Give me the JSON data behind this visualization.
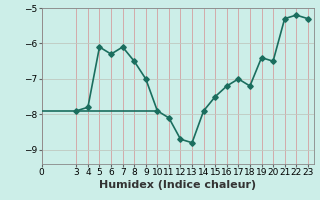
{
  "xlabel": "Humidex (Indice chaleur)",
  "ylabel": "",
  "background_color": "#cceee8",
  "line_color": "#1a6e5e",
  "hline_color": "#1a6e5e",
  "grid_color": "#b0d8d0",
  "x_values": [
    3,
    4,
    5,
    6,
    7,
    8,
    9,
    10,
    11,
    12,
    13,
    14,
    15,
    16,
    17,
    18,
    19,
    20,
    21,
    22,
    23
  ],
  "y_values": [
    -7.9,
    -7.8,
    -6.1,
    -6.3,
    -6.1,
    -6.5,
    -7.0,
    -7.9,
    -8.1,
    -8.7,
    -8.8,
    -7.9,
    -7.5,
    -7.2,
    -7.0,
    -7.2,
    -6.4,
    -6.5,
    -5.3,
    -5.2,
    -5.3
  ],
  "hline_y": -7.9,
  "hline_x_start": 0,
  "hline_x_end": 10,
  "xlim": [
    0,
    23.5
  ],
  "ylim": [
    -9.4,
    -5.0
  ],
  "yticks": [
    -9,
    -8,
    -7,
    -6,
    -5
  ],
  "xticks": [
    0,
    3,
    4,
    5,
    6,
    7,
    8,
    9,
    10,
    11,
    12,
    13,
    14,
    15,
    16,
    17,
    18,
    19,
    20,
    21,
    22,
    23
  ],
  "tick_fontsize": 6.5,
  "label_fontsize": 8,
  "linewidth": 1.2,
  "markersize": 2.8
}
